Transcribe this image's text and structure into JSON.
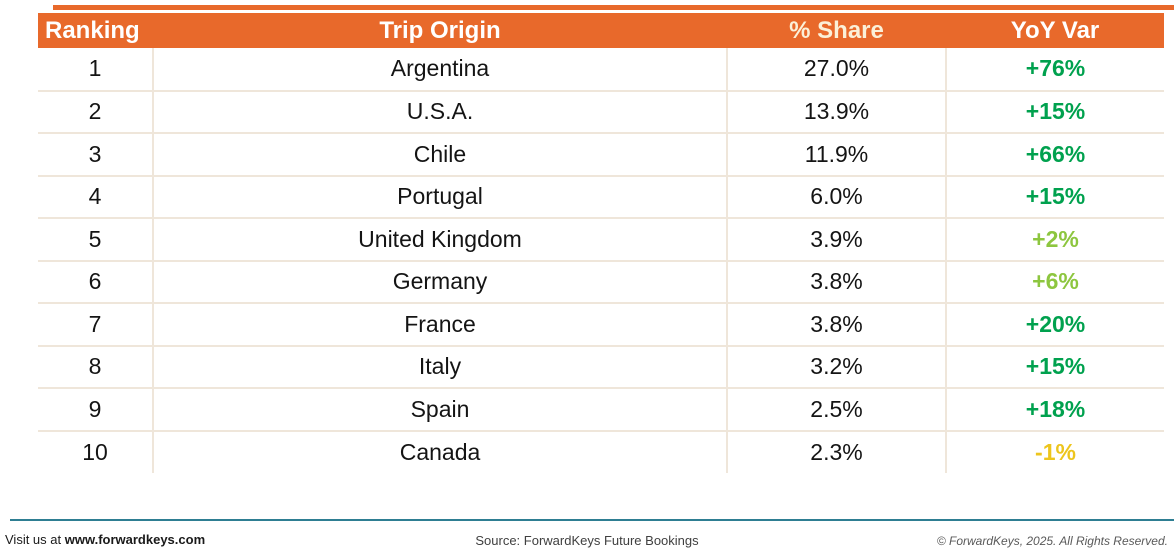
{
  "table": {
    "columns": [
      "Ranking",
      "Trip Origin",
      "% Share",
      "YoY Var"
    ],
    "rows": [
      {
        "ranking": "1",
        "origin": "Argentina",
        "share": "27.0%",
        "yoy": "+76%",
        "yoy_color": "green"
      },
      {
        "ranking": "2",
        "origin": "U.S.A.",
        "share": "13.9%",
        "yoy": "+15%",
        "yoy_color": "green"
      },
      {
        "ranking": "3",
        "origin": "Chile",
        "share": "11.9%",
        "yoy": "+66%",
        "yoy_color": "green"
      },
      {
        "ranking": "4",
        "origin": "Portugal",
        "share": "6.0%",
        "yoy": "+15%",
        "yoy_color": "green"
      },
      {
        "ranking": "5",
        "origin": "United Kingdom",
        "share": "3.9%",
        "yoy": "+2%",
        "yoy_color": "lightgreen"
      },
      {
        "ranking": "6",
        "origin": "Germany",
        "share": "3.8%",
        "yoy": "+6%",
        "yoy_color": "lightgreen"
      },
      {
        "ranking": "7",
        "origin": "France",
        "share": "3.8%",
        "yoy": "+20%",
        "yoy_color": "green"
      },
      {
        "ranking": "8",
        "origin": "Italy",
        "share": "3.2%",
        "yoy": "+15%",
        "yoy_color": "green"
      },
      {
        "ranking": "9",
        "origin": "Spain",
        "share": "2.5%",
        "yoy": "+18%",
        "yoy_color": "green"
      },
      {
        "ranking": "10",
        "origin": "Canada",
        "share": "2.3%",
        "yoy": "-1%",
        "yoy_color": "yellow"
      }
    ]
  },
  "colors": {
    "header_orange": "#E8692B",
    "yoy_green": "#00A14E",
    "yoy_lightgreen": "#8DC63F",
    "yoy_yellow": "#EDC51D",
    "row_border": "#EFE6DA",
    "footer_line_teal": "#2E7E92"
  },
  "footer": {
    "visit_prefix": "Visit us at ",
    "visit_url": "www.forwardkeys.com",
    "source": "Source: ForwardKeys Future Bookings",
    "copyright": "© ForwardKeys, 2025. All Rights Reserved."
  }
}
